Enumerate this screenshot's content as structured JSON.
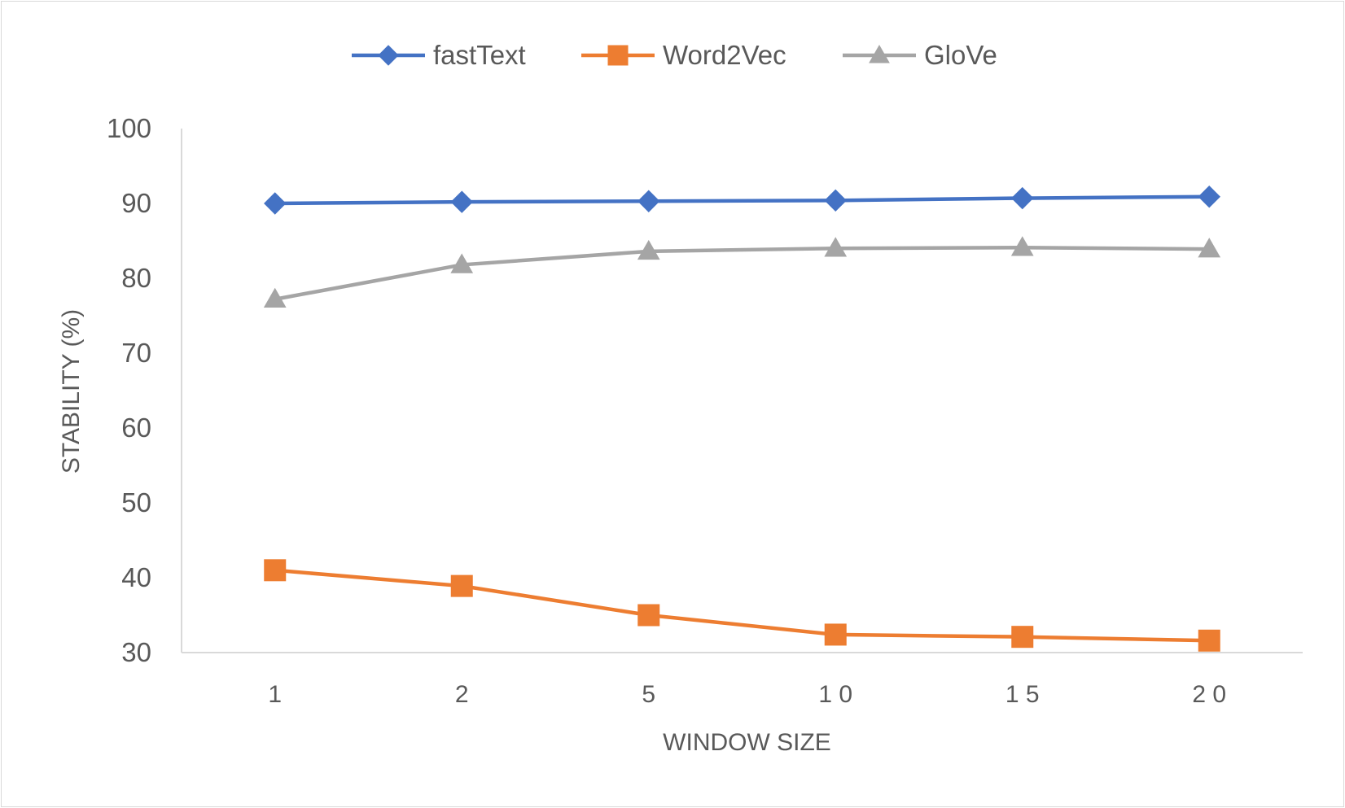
{
  "chart_data": {
    "type": "line",
    "title": "",
    "xlabel": "WINDOW SIZE",
    "ylabel": "STABILITY (%)",
    "categories": [
      "1",
      "2",
      "5",
      "1 0",
      "1 5",
      "2 0"
    ],
    "ylim": [
      30,
      100
    ],
    "yticks": [
      "30",
      "40",
      "50",
      "60",
      "70",
      "80",
      "90",
      "100"
    ],
    "grid": false,
    "legend_position": "top",
    "series": [
      {
        "name": "fastText",
        "color": "#4472C4",
        "marker": "diamond",
        "values": [
          90.0,
          90.2,
          90.3,
          90.4,
          90.7,
          90.9
        ]
      },
      {
        "name": "Word2Vec",
        "color": "#ED7D31",
        "marker": "square",
        "values": [
          41.0,
          38.9,
          35.0,
          32.4,
          32.1,
          31.6
        ]
      },
      {
        "name": "GloVe",
        "color": "#A5A5A5",
        "marker": "triangle",
        "values": [
          77.2,
          81.8,
          83.6,
          84.0,
          84.1,
          83.9
        ]
      }
    ]
  }
}
